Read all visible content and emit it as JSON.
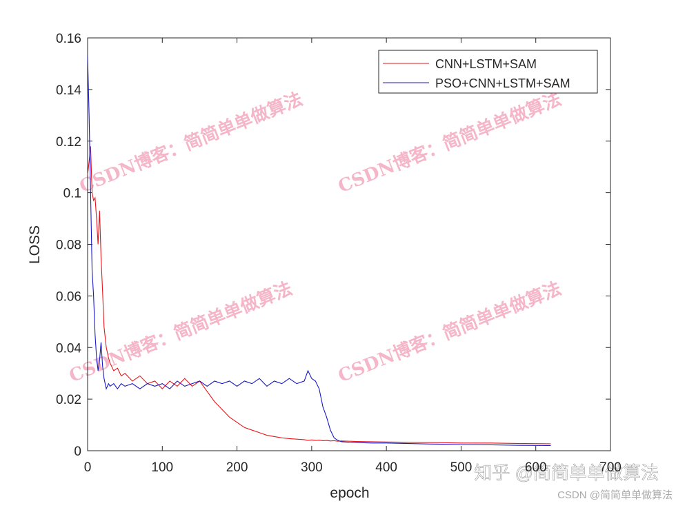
{
  "chart_data": {
    "type": "line",
    "x_label": "epoch",
    "y_label": "LOSS",
    "x": [
      0,
      2,
      4,
      6,
      8,
      10,
      12,
      14,
      16,
      18,
      20,
      22,
      25,
      28,
      30,
      35,
      40,
      45,
      50,
      60,
      70,
      80,
      90,
      100,
      110,
      120,
      130,
      140,
      150,
      160,
      170,
      180,
      190,
      200,
      210,
      220,
      230,
      240,
      250,
      260,
      270,
      280,
      290,
      295,
      300,
      305,
      310,
      315,
      320,
      325,
      330,
      335,
      340,
      350,
      360,
      380,
      400,
      430,
      460,
      500,
      540,
      580,
      620
    ],
    "series": [
      {
        "name": "CNN+LSTM+SAM",
        "color": "#e8161a",
        "values": [
          0.107,
          0.112,
          0.118,
          0.1,
          0.097,
          0.098,
          0.09,
          0.08,
          0.093,
          0.075,
          0.062,
          0.048,
          0.04,
          0.036,
          0.034,
          0.031,
          0.032,
          0.029,
          0.03,
          0.027,
          0.029,
          0.026,
          0.027,
          0.024,
          0.027,
          0.025,
          0.028,
          0.025,
          0.027,
          0.023,
          0.019,
          0.016,
          0.013,
          0.011,
          0.009,
          0.008,
          0.007,
          0.006,
          0.0055,
          0.005,
          0.0047,
          0.0045,
          0.0043,
          0.004,
          0.0042,
          0.004,
          0.0041,
          0.0039,
          0.004,
          0.0038,
          0.0039,
          0.0037,
          0.0038,
          0.0037,
          0.0036,
          0.0035,
          0.0034,
          0.0033,
          0.0032,
          0.003,
          0.003,
          0.0028,
          0.0027
        ]
      },
      {
        "name": "PSO+CNN+LSTM+SAM",
        "color": "#1818c8",
        "values": [
          0.153,
          0.13,
          0.1,
          0.07,
          0.06,
          0.045,
          0.036,
          0.031,
          0.035,
          0.042,
          0.033,
          0.028,
          0.024,
          0.026,
          0.025,
          0.026,
          0.024,
          0.026,
          0.025,
          0.026,
          0.024,
          0.026,
          0.025,
          0.026,
          0.024,
          0.027,
          0.025,
          0.026,
          0.027,
          0.025,
          0.027,
          0.026,
          0.027,
          0.025,
          0.027,
          0.026,
          0.028,
          0.025,
          0.027,
          0.026,
          0.028,
          0.026,
          0.027,
          0.031,
          0.028,
          0.027,
          0.024,
          0.017,
          0.013,
          0.008,
          0.005,
          0.004,
          0.0035,
          0.0033,
          0.0032,
          0.003,
          0.003,
          0.0028,
          0.0026,
          0.0024,
          0.0023,
          0.0021,
          0.002
        ]
      }
    ],
    "xlim": [
      0,
      700
    ],
    "xticks": [
      0,
      100,
      200,
      300,
      400,
      500,
      600,
      700
    ],
    "ylim": [
      0,
      0.16
    ],
    "yticks": [
      0,
      0.02,
      0.04,
      0.06,
      0.08,
      0.1,
      0.12,
      0.14,
      0.16
    ],
    "legend": "upper-right",
    "watermarks": [
      "CSDN博客：简简单单做算法",
      "CSDN博客：简简单单做算法",
      "CSDN博客：简简单单做算法",
      "CSDN博客：简简单单做算法",
      "知乎 @简简单单做算法",
      "CSDN @简简单单做算法"
    ]
  }
}
